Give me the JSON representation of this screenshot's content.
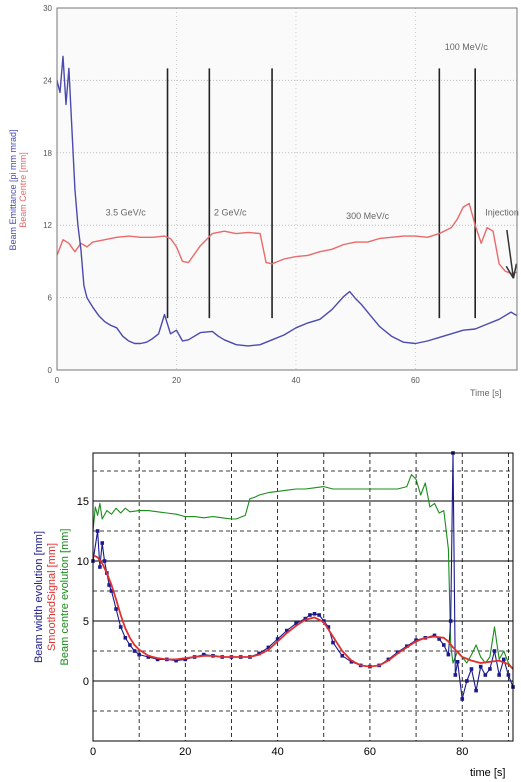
{
  "colors": {
    "blue": "#1a1a8c",
    "red": "#e03030",
    "green": "#1a8c1a",
    "upper_red": "#e86a6a",
    "upper_blue": "#4a4ab0"
  },
  "chart_data": [
    {
      "type": "line",
      "title": "",
      "ylabel_lines": [
        "Beam Emittance [pi mm mrad]",
        "Beam Centre [mm]"
      ],
      "xlabel": "Time [s]",
      "xlim": [
        0,
        77
      ],
      "ylim": [
        0,
        30
      ],
      "xticks": [
        0,
        20,
        40,
        60
      ],
      "yticks": [
        0,
        6,
        12,
        18,
        24,
        30
      ],
      "grid": true,
      "annotations": [
        {
          "text": "100 MeV/c",
          "x": 68.5,
          "y": 26.5
        },
        {
          "text": "3.5 GeV/c",
          "x": 11.5,
          "y": 12.8
        },
        {
          "text": "2 GeV/c",
          "x": 29.0,
          "y": 12.8
        },
        {
          "text": "300 MeV/c",
          "x": 52.0,
          "y": 12.5
        },
        {
          "text": "Injection",
          "x": 74.5,
          "y": 12.8
        }
      ],
      "vlines": [
        18.5,
        25.5,
        36.0,
        64.0,
        70.0
      ],
      "series": [
        {
          "name": "Beam Centre",
          "color_key": "upper_red",
          "x": [
            0,
            1,
            2,
            3,
            4,
            5,
            6,
            8,
            10,
            12,
            14,
            16,
            18,
            19,
            20,
            21,
            22,
            24,
            26,
            28,
            30,
            32,
            34,
            35,
            36,
            37,
            38,
            40,
            42,
            44,
            46,
            48,
            50,
            52,
            54,
            56,
            58,
            60,
            62,
            64,
            66,
            67,
            68,
            69,
            70,
            71,
            72,
            73,
            74,
            75,
            76,
            77
          ],
          "y": [
            9.5,
            10.8,
            10.5,
            9.8,
            10.5,
            10.2,
            10.6,
            10.8,
            11.0,
            11.1,
            11.0,
            11.0,
            11.1,
            10.9,
            10.2,
            9.0,
            8.9,
            10.3,
            11.3,
            11.5,
            11.3,
            11.4,
            11.3,
            8.9,
            8.8,
            9.0,
            9.2,
            9.4,
            9.5,
            9.8,
            10.0,
            10.4,
            10.6,
            10.6,
            10.9,
            11.0,
            11.1,
            11.1,
            11.0,
            11.3,
            11.8,
            12.5,
            13.5,
            13.8,
            12.0,
            10.5,
            11.8,
            11.5,
            8.8,
            8.2,
            8.0,
            8.1
          ]
        },
        {
          "name": "Beam Emittance",
          "color_key": "upper_blue",
          "x": [
            0,
            0.5,
            1,
            1.5,
            2,
            2.5,
            3,
            3.5,
            4,
            4.5,
            5,
            6,
            7,
            8,
            9,
            10,
            11,
            12,
            13,
            14,
            15,
            16,
            17,
            18,
            19,
            20,
            21,
            22,
            24,
            26,
            27,
            28,
            30,
            32,
            34,
            36,
            38,
            40,
            42,
            44,
            46,
            48,
            49,
            50,
            51,
            52,
            54,
            56,
            58,
            60,
            62,
            64,
            66,
            68,
            70,
            72,
            74,
            76,
            77
          ],
          "y": [
            24,
            23,
            26,
            22,
            25,
            20,
            15,
            12,
            10,
            7,
            6,
            5.2,
            4.5,
            4.0,
            3.7,
            3.5,
            2.8,
            2.4,
            2.2,
            2.2,
            2.3,
            2.6,
            3.0,
            4.6,
            3.0,
            3.3,
            2.4,
            2.5,
            3.1,
            3.2,
            2.8,
            2.5,
            2.1,
            2.0,
            2.1,
            2.5,
            2.9,
            3.5,
            3.9,
            4.2,
            5.0,
            6.1,
            6.5,
            5.9,
            5.4,
            4.8,
            3.6,
            2.8,
            2.3,
            2.2,
            2.4,
            2.7,
            3.0,
            3.3,
            3.4,
            3.8,
            4.2,
            4.8,
            4.5
          ]
        }
      ]
    },
    {
      "type": "line",
      "title": "",
      "ylabel_lines": [
        "Beam width evolution [mm]",
        "SmoothedSignal [mm]",
        "Beam centre evolution [mm]"
      ],
      "xlabel": "time [s]",
      "xlim": [
        0,
        91
      ],
      "ylim": [
        -5,
        19
      ],
      "xticks": [
        0,
        20,
        40,
        60,
        80
      ],
      "yticks": [
        0,
        5,
        10,
        15
      ],
      "grid": true,
      "grid_extra_y": [
        -2.5,
        2.5,
        7.5,
        12.5,
        17.5
      ],
      "grid_extra_x": [
        10,
        30,
        50,
        70,
        90
      ],
      "series": [
        {
          "name": "Beam width evolution",
          "color_key": "blue",
          "x": [
            0,
            1,
            1.5,
            2,
            2.5,
            3,
            3.5,
            4,
            5,
            6,
            7,
            8,
            9,
            10,
            12,
            14,
            16,
            18,
            20,
            22,
            24,
            26,
            28,
            30,
            32,
            34,
            36,
            38,
            40,
            42,
            44,
            46,
            47,
            48,
            49,
            50,
            51,
            52,
            54,
            56,
            58,
            60,
            62,
            64,
            66,
            68,
            70,
            72,
            74,
            75,
            76,
            77,
            77.5,
            78,
            78.5,
            79,
            80,
            81,
            82,
            83,
            84,
            85,
            86,
            87,
            88,
            89,
            90,
            91
          ],
          "y": [
            10.0,
            12.5,
            9.5,
            11.5,
            10.0,
            9.0,
            8.0,
            7.5,
            6.0,
            4.5,
            3.6,
            3.0,
            2.5,
            2.2,
            2.0,
            1.8,
            1.8,
            1.7,
            1.8,
            2.0,
            2.2,
            2.1,
            2.0,
            2.0,
            2.0,
            2.0,
            2.3,
            2.8,
            3.5,
            4.2,
            4.8,
            5.2,
            5.5,
            5.6,
            5.5,
            5.0,
            4.5,
            3.2,
            2.1,
            1.6,
            1.3,
            1.2,
            1.3,
            1.8,
            2.4,
            2.9,
            3.4,
            3.6,
            3.8,
            3.5,
            3.0,
            2.2,
            5.0,
            19.0,
            0.5,
            1.6,
            -1.5,
            0.0,
            1.0,
            -0.8,
            1.2,
            0.5,
            1.0,
            2.5,
            0.5,
            1.8,
            0.5,
            -0.5
          ]
        },
        {
          "name": "SmoothedSignal",
          "color_key": "red",
          "x": [
            0,
            1,
            2,
            3,
            4,
            5,
            6,
            7,
            8,
            9,
            10,
            12,
            14,
            16,
            18,
            20,
            22,
            24,
            26,
            28,
            30,
            32,
            34,
            36,
            38,
            40,
            42,
            44,
            46,
            48,
            50,
            52,
            54,
            56,
            58,
            60,
            62,
            64,
            66,
            68,
            70,
            72,
            74,
            76,
            77,
            78,
            80,
            82,
            84,
            86,
            88,
            90,
            91
          ],
          "y": [
            10.5,
            10.3,
            9.8,
            9.0,
            8.0,
            6.8,
            5.5,
            4.4,
            3.6,
            3.0,
            2.6,
            2.1,
            1.9,
            1.8,
            1.8,
            1.9,
            2.0,
            2.1,
            2.1,
            2.0,
            2.0,
            2.0,
            2.0,
            2.2,
            2.6,
            3.3,
            4.0,
            4.6,
            5.1,
            5.3,
            4.9,
            3.7,
            2.5,
            1.7,
            1.3,
            1.2,
            1.3,
            1.7,
            2.3,
            2.8,
            3.3,
            3.6,
            3.7,
            3.6,
            3.3,
            2.8,
            2.0,
            1.7,
            1.5,
            1.6,
            1.7,
            1.4,
            1.0
          ]
        },
        {
          "name": "Beam centre evolution",
          "color_key": "green",
          "x": [
            0,
            0.5,
            1,
            1.5,
            2,
            3,
            4,
            5,
            6,
            7,
            8,
            10,
            12,
            14,
            16,
            18,
            20,
            22,
            24,
            26,
            28,
            30,
            31,
            33,
            34,
            35,
            36,
            38,
            40,
            42,
            44,
            46,
            48,
            50,
            52,
            54,
            56,
            58,
            60,
            62,
            64,
            66,
            68,
            69,
            70,
            71,
            72,
            73,
            74,
            75,
            76,
            77,
            77.5,
            78,
            79,
            80,
            81,
            82,
            83,
            84,
            85,
            86,
            87,
            88,
            89,
            90,
            91
          ],
          "y": [
            12.5,
            14.5,
            13.8,
            14.8,
            13.5,
            14.2,
            13.9,
            14.4,
            14.0,
            14.4,
            14.1,
            14.2,
            14.2,
            14.1,
            14.0,
            13.9,
            13.7,
            13.7,
            13.6,
            13.7,
            13.6,
            13.5,
            13.5,
            13.8,
            15.2,
            15.3,
            15.5,
            15.7,
            15.8,
            15.9,
            16.0,
            16.0,
            16.1,
            16.2,
            16.0,
            16.0,
            16.0,
            16.0,
            16.0,
            16.0,
            16.0,
            16.0,
            16.2,
            17.2,
            16.8,
            15.5,
            16.5,
            14.5,
            14.8,
            14.0,
            14.2,
            11.0,
            3.0,
            1.5,
            2.5,
            2.0,
            1.5,
            2.2,
            3.0,
            2.0,
            1.5,
            2.0,
            4.5,
            1.8,
            2.5,
            1.5,
            1.0
          ]
        }
      ]
    }
  ]
}
